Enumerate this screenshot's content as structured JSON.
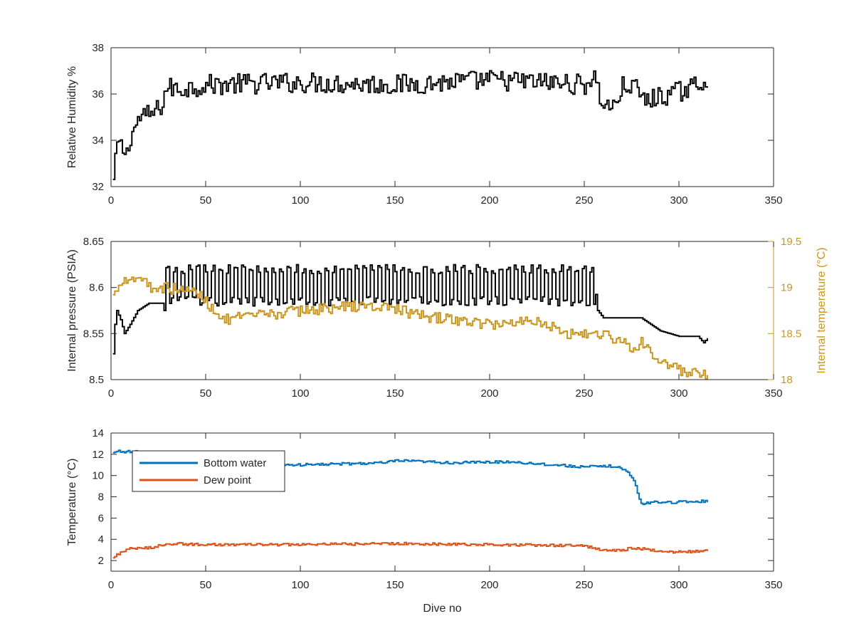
{
  "chart_data": [
    {
      "type": "line",
      "xlabel": "",
      "ylabel": "Relative Humidity %",
      "xlim": [
        0,
        350
      ],
      "ylim": [
        32,
        38
      ],
      "xticks": [
        0,
        50,
        100,
        150,
        200,
        250,
        300,
        350
      ],
      "yticks": [
        32,
        34,
        36,
        38
      ],
      "grid": false,
      "series": [
        {
          "color": "#000000",
          "noise_amplitude": 0.45,
          "keypoints": [
            [
              1,
              32.2
            ],
            [
              2,
              33.0
            ],
            [
              3,
              33.9
            ],
            [
              5,
              33.7
            ],
            [
              8,
              33.4
            ],
            [
              10,
              34.2
            ],
            [
              15,
              35.0
            ],
            [
              20,
              35.1
            ],
            [
              24,
              35.3
            ],
            [
              27,
              35.6
            ],
            [
              29,
              36.3
            ],
            [
              35,
              36.2
            ],
            [
              50,
              36.4
            ],
            [
              100,
              36.5
            ],
            [
              150,
              36.4
            ],
            [
              200,
              36.6
            ],
            [
              230,
              36.5
            ],
            [
              250,
              36.4
            ],
            [
              255,
              36.8
            ],
            [
              258,
              35.8
            ],
            [
              262,
              35.5
            ],
            [
              265,
              35.4
            ],
            [
              270,
              36.3
            ],
            [
              275,
              36.4
            ],
            [
              282,
              35.7
            ],
            [
              290,
              35.9
            ],
            [
              300,
              36.1
            ],
            [
              310,
              36.4
            ],
            [
              315,
              36.7
            ]
          ]
        }
      ]
    },
    {
      "type": "line",
      "xlabel": "",
      "ylabel": "Internal pressure (PSIA)",
      "y2label": "Internal temperature (°C)",
      "xlim": [
        0,
        350
      ],
      "ylim": [
        8.5,
        8.65
      ],
      "y2lim": [
        18,
        19.5
      ],
      "xticks": [
        0,
        50,
        100,
        150,
        200,
        250,
        300,
        350
      ],
      "yticks": [
        8.5,
        8.55,
        8.6,
        8.65
      ],
      "yticklabels": [
        "8.5",
        "8.55",
        "8.6",
        "8.65"
      ],
      "y2ticks": [
        18,
        18.5,
        19,
        19.5
      ],
      "y2ticklabels": [
        "18",
        "18.5",
        "19",
        "19.5"
      ],
      "grid": false,
      "series": [
        {
          "axis": "left",
          "color": "#000000",
          "sawtooth": [
            29,
            255,
            8.585,
            8.62,
            4
          ],
          "keypoints": [
            [
              1,
              8.528
            ],
            [
              2,
              8.56
            ],
            [
              3,
              8.575
            ],
            [
              5,
              8.565
            ],
            [
              7,
              8.55
            ],
            [
              10,
              8.56
            ],
            [
              14,
              8.575
            ],
            [
              20,
              8.583
            ],
            [
              27,
              8.583
            ],
            [
              28,
              8.575
            ],
            [
              255,
              8.61
            ],
            [
              257,
              8.575
            ],
            [
              260,
              8.567
            ],
            [
              280,
              8.567
            ],
            [
              285,
              8.56
            ],
            [
              290,
              8.553
            ],
            [
              300,
              8.547
            ],
            [
              310,
              8.547
            ],
            [
              313,
              8.54
            ],
            [
              315,
              8.545
            ]
          ]
        },
        {
          "axis": "right",
          "color": "#C8961E",
          "noise_amplitude": 0.06,
          "keypoints": [
            [
              1,
              18.9
            ],
            [
              3,
              19.0
            ],
            [
              6,
              19.1
            ],
            [
              18,
              19.1
            ],
            [
              20,
              19.0
            ],
            [
              28,
              19.0
            ],
            [
              45,
              18.95
            ],
            [
              52,
              18.8
            ],
            [
              60,
              18.65
            ],
            [
              80,
              18.7
            ],
            [
              100,
              18.75
            ],
            [
              130,
              18.8
            ],
            [
              150,
              18.78
            ],
            [
              160,
              18.7
            ],
            [
              180,
              18.65
            ],
            [
              200,
              18.6
            ],
            [
              225,
              18.65
            ],
            [
              240,
              18.5
            ],
            [
              260,
              18.5
            ],
            [
              270,
              18.4
            ],
            [
              275,
              18.35
            ],
            [
              280,
              18.4
            ],
            [
              290,
              18.2
            ],
            [
              300,
              18.1
            ],
            [
              310,
              18.05
            ],
            [
              315,
              18.05
            ]
          ]
        }
      ]
    },
    {
      "type": "line",
      "xlabel": "Dive no",
      "ylabel": "Temperature (°C)",
      "xlim": [
        0,
        350
      ],
      "ylim": [
        1,
        14
      ],
      "xticks": [
        0,
        50,
        100,
        150,
        200,
        250,
        300,
        350
      ],
      "yticks": [
        2,
        4,
        6,
        8,
        10,
        12,
        14
      ],
      "grid": false,
      "legend_position": "top-left",
      "series": [
        {
          "name": "Bottom water",
          "color": "#0072BD",
          "noise_amplitude": 0.12,
          "keypoints": [
            [
              1,
              12.1
            ],
            [
              3,
              12.3
            ],
            [
              15,
              12.2
            ],
            [
              20,
              11.4
            ],
            [
              50,
              11.1
            ],
            [
              100,
              11.0
            ],
            [
              145,
              11.2
            ],
            [
              150,
              11.4
            ],
            [
              180,
              11.2
            ],
            [
              210,
              11.3
            ],
            [
              250,
              10.8
            ],
            [
              265,
              10.9
            ],
            [
              272,
              10.5
            ],
            [
              276,
              9.5
            ],
            [
              280,
              7.3
            ],
            [
              285,
              7.5
            ],
            [
              300,
              7.5
            ],
            [
              315,
              7.6
            ]
          ]
        },
        {
          "name": "Dew point",
          "color": "#D95319",
          "noise_amplitude": 0.12,
          "keypoints": [
            [
              1,
              2.2
            ],
            [
              3,
              2.6
            ],
            [
              10,
              3.1
            ],
            [
              20,
              3.2
            ],
            [
              30,
              3.6
            ],
            [
              50,
              3.5
            ],
            [
              100,
              3.5
            ],
            [
              150,
              3.6
            ],
            [
              200,
              3.5
            ],
            [
              250,
              3.4
            ],
            [
              258,
              3.0
            ],
            [
              270,
              3.0
            ],
            [
              275,
              3.2
            ],
            [
              280,
              3.1
            ],
            [
              290,
              2.9
            ],
            [
              300,
              2.8
            ],
            [
              315,
              2.9
            ]
          ]
        }
      ]
    }
  ]
}
